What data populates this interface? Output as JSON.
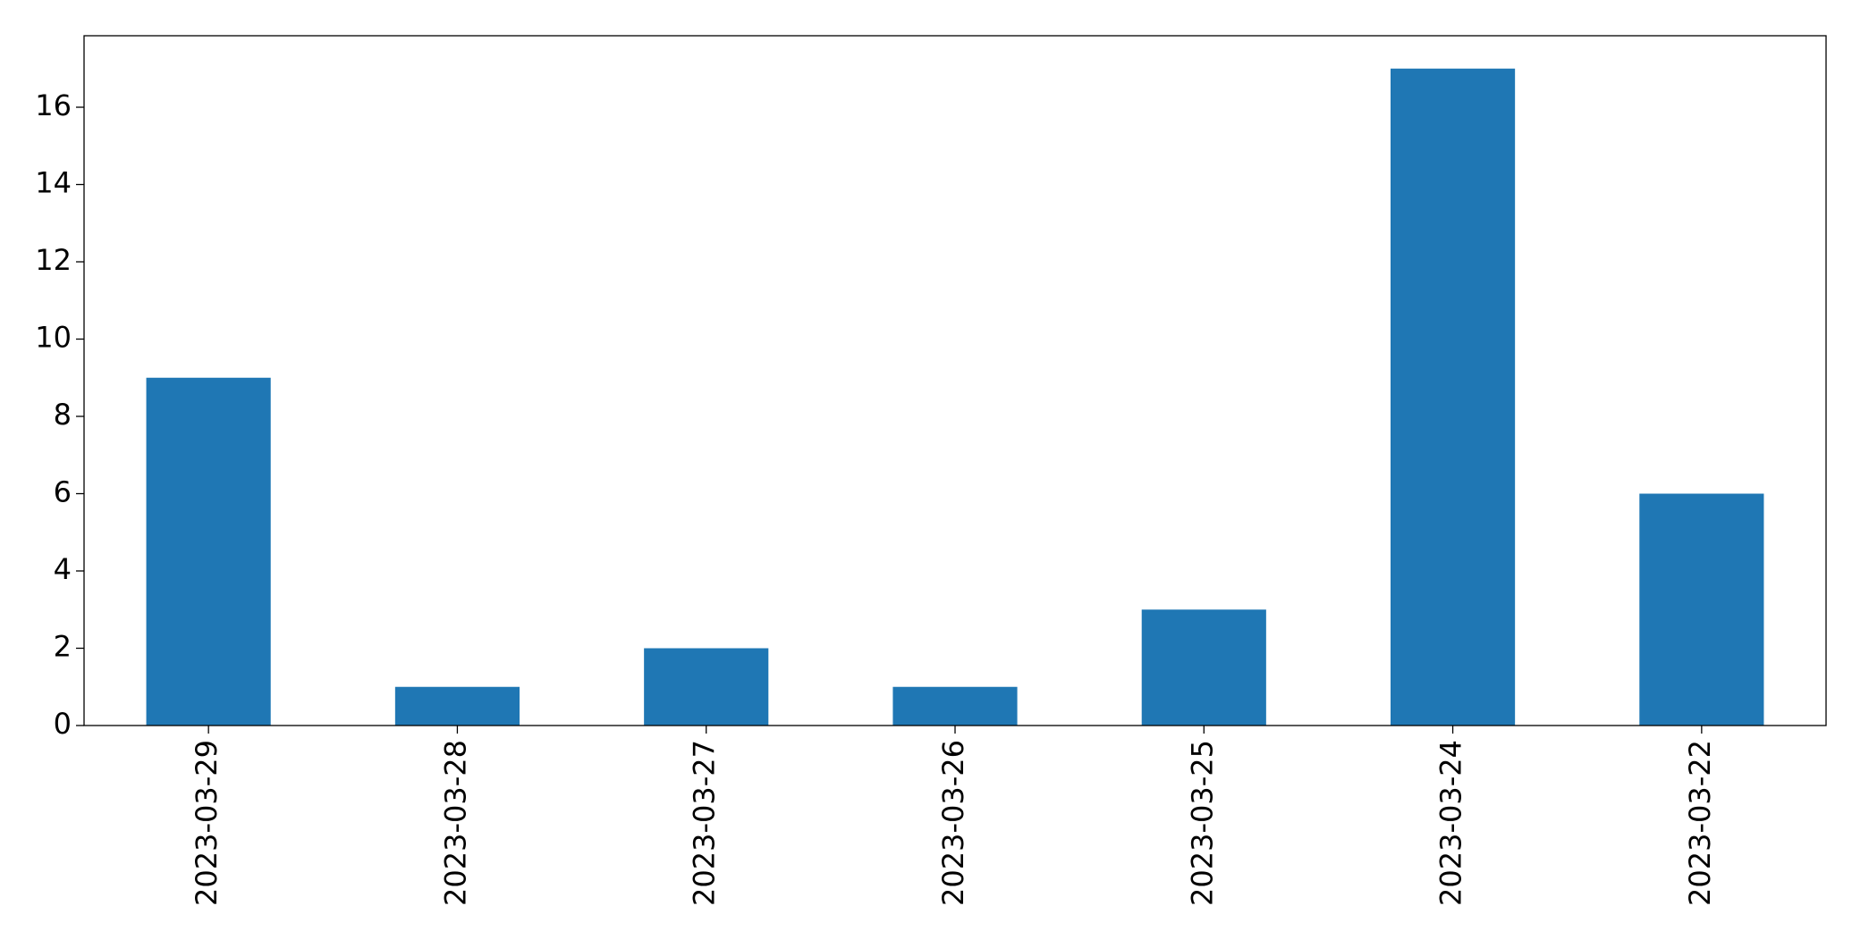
{
  "chart_data": {
    "type": "bar",
    "categories": [
      "2023-03-29",
      "2023-03-28",
      "2023-03-27",
      "2023-03-26",
      "2023-03-25",
      "2023-03-24",
      "2023-03-22"
    ],
    "values": [
      9,
      1,
      2,
      1,
      3,
      17,
      6
    ],
    "color": "#1f77b4",
    "ylim": [
      0,
      17.85
    ],
    "yticks": [
      0,
      2,
      4,
      6,
      8,
      10,
      12,
      14,
      16
    ],
    "grid": false
  }
}
